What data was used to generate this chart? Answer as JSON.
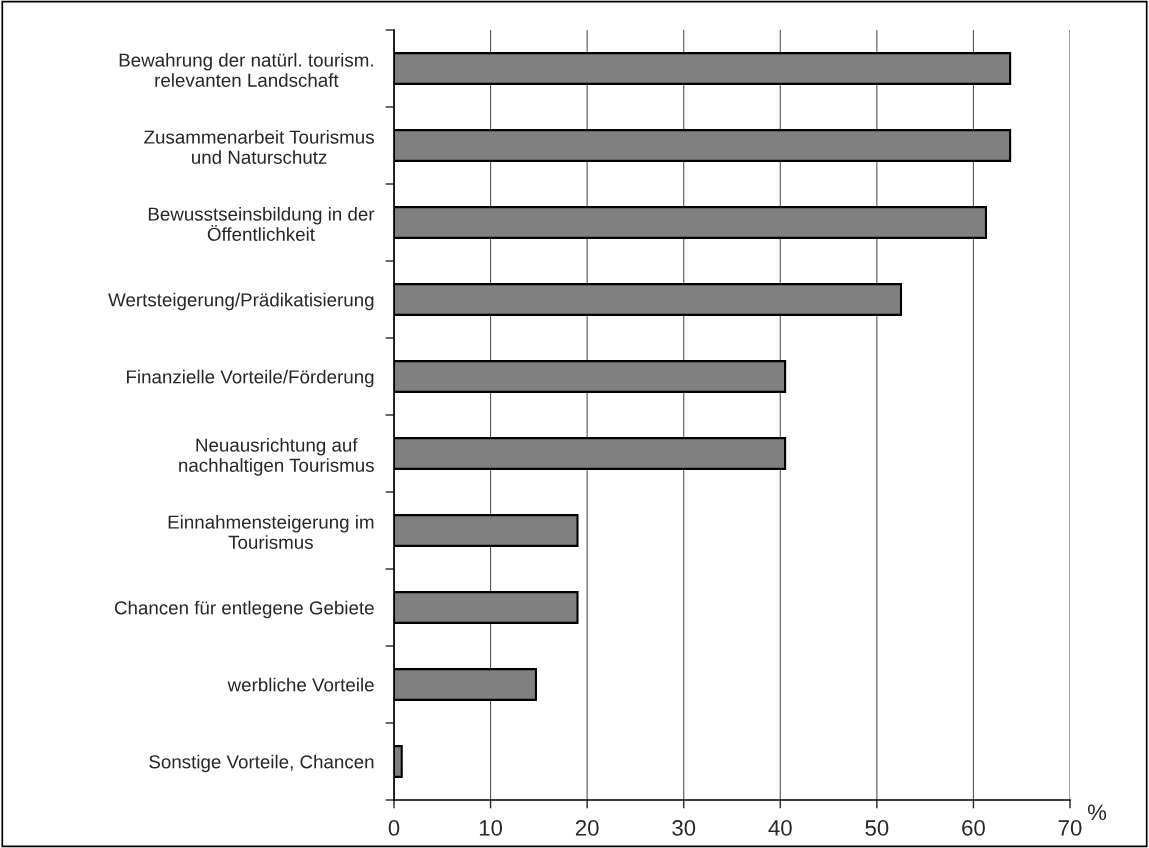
{
  "chart_data": {
    "type": "bar",
    "orientation": "horizontal",
    "xlabel": "%",
    "categories": [
      "Bewahrung der natürl. tourism.\nrelevanten Landschaft",
      "Zusammenarbeit Tourismus\nund Naturschutz",
      "Bewusstseinsbildung in der\nÖffentlichkeit",
      "Wertsteigerung/Prädikatisierung",
      "Finanzielle Vorteile/Förderung",
      "Neuausrichtung auf\nnachhaltigen Tourismus",
      "Einnahmensteigerung im\nTourismus",
      "Chancen für entlegene Gebiete",
      "werbliche Vorteile",
      "Sonstige Vorteile, Chancen"
    ],
    "values": [
      63.8,
      63.8,
      61.3,
      52.5,
      40.5,
      40.5,
      19.0,
      19.0,
      14.7,
      0.8
    ],
    "color": "#808080",
    "xlim": [
      0,
      70
    ],
    "xticks": [
      0,
      10,
      20,
      30,
      40,
      50,
      60,
      70
    ],
    "grid": "x",
    "legend": false
  }
}
